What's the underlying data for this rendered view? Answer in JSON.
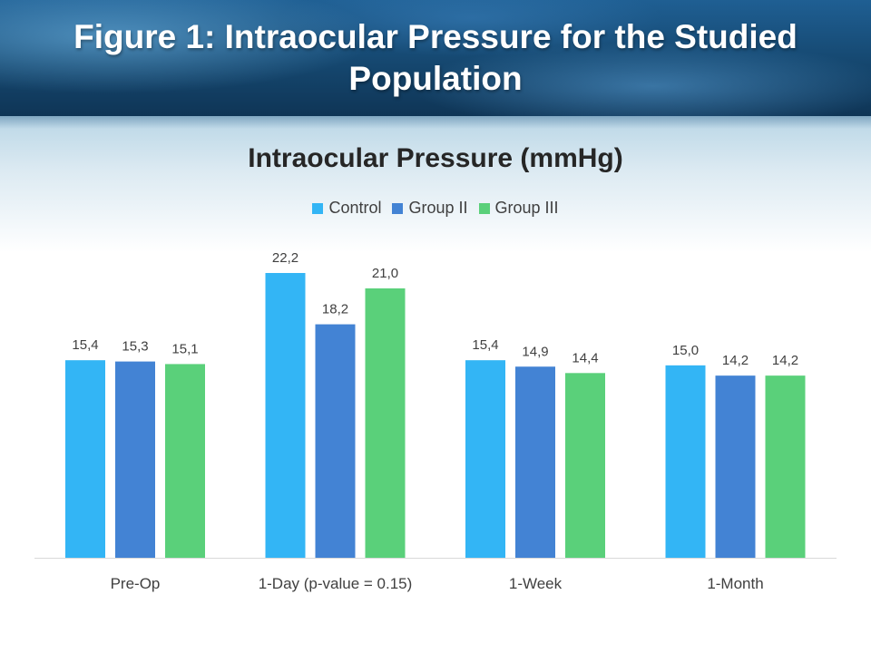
{
  "header": {
    "title": "Figure 1: Intraocular Pressure for the Studied Population"
  },
  "chart_data": {
    "type": "bar",
    "title": "Intraocular Pressure (mmHg)",
    "categories": [
      "Pre-Op",
      "1-Day (p-value = 0.15)",
      "1-Week",
      "1-Month"
    ],
    "series": [
      {
        "name": "Control",
        "color": "#33b5f5",
        "values": [
          15.4,
          22.2,
          15.4,
          15.0
        ],
        "labels": [
          "15,4",
          "22,2",
          "15,4",
          "15,0"
        ]
      },
      {
        "name": "Group II",
        "color": "#4383d4",
        "values": [
          15.3,
          18.2,
          14.9,
          14.2
        ],
        "labels": [
          "15,3",
          "18,2",
          "14,9",
          "14,2"
        ]
      },
      {
        "name": "Group III",
        "color": "#5ad07a",
        "values": [
          15.1,
          21.0,
          14.4,
          14.2
        ],
        "labels": [
          "15,1",
          "21,0",
          "14,4",
          "14,2"
        ]
      }
    ],
    "ylim": [
      0,
      22.2
    ],
    "legend_position": "top",
    "grid": false
  }
}
